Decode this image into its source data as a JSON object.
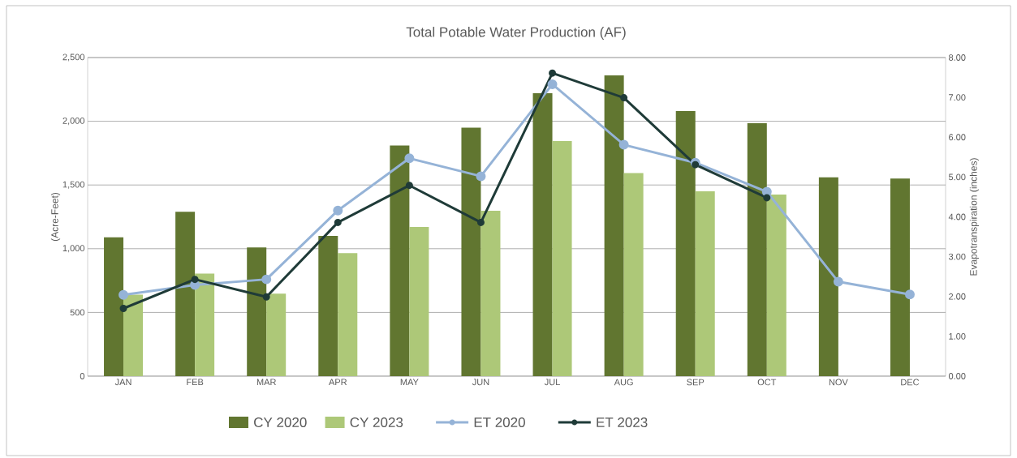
{
  "chart_data": {
    "type": "bar",
    "title": "Total Potable Water Production (AF)",
    "ylabel": "(Acre-Feet)",
    "y2label": "Evapotranspiration (inches)",
    "categories": [
      "JAN",
      "FEB",
      "MAR",
      "APR",
      "MAY",
      "JUN",
      "JUL",
      "AUG",
      "SEP",
      "OCT",
      "NOV",
      "DEC"
    ],
    "ylim": [
      0,
      2500
    ],
    "yticks": [
      {
        "value": 0,
        "label": "0"
      },
      {
        "value": 500,
        "label": "500"
      },
      {
        "value": 1000,
        "label": "1,000"
      },
      {
        "value": 1500,
        "label": "1,500"
      },
      {
        "value": 2000,
        "label": "2,000"
      },
      {
        "value": 2500,
        "label": "2,500"
      }
    ],
    "y2lim": [
      0,
      8
    ],
    "y2ticks": [
      {
        "value": 0,
        "label": "0.00"
      },
      {
        "value": 1,
        "label": "1.00"
      },
      {
        "value": 2,
        "label": "2.00"
      },
      {
        "value": 3,
        "label": "3.00"
      },
      {
        "value": 4,
        "label": "4.00"
      },
      {
        "value": 5,
        "label": "5.00"
      },
      {
        "value": 6,
        "label": "6.00"
      },
      {
        "value": 7,
        "label": "7.00"
      },
      {
        "value": 8,
        "label": "8.00"
      }
    ],
    "grid": "y",
    "legend": "bottom",
    "marker": "circle",
    "series": [
      {
        "name": "CY 2020",
        "color": "#617630",
        "values": [
          1090,
          1290,
          1010,
          1100,
          1810,
          1950,
          2220,
          2360,
          2080,
          1985,
          1560,
          1550
        ]
      },
      {
        "name": "CY 2023",
        "color": "#adc878",
        "values": [
          640,
          805,
          648,
          965,
          1170,
          1297,
          1847,
          1594,
          1450,
          1425,
          null,
          null
        ]
      },
      {
        "name": "ET 2020",
        "type": "line",
        "axis": "y2",
        "color": "#95b3d7",
        "values": [
          2.04,
          2.29,
          2.43,
          4.16,
          5.47,
          5.02,
          7.33,
          5.81,
          5.36,
          4.63,
          2.37,
          2.05
        ]
      },
      {
        "name": "ET 2023",
        "type": "line",
        "axis": "y2",
        "color": "#1f3b38",
        "values": [
          1.7,
          2.43,
          1.99,
          3.86,
          4.79,
          3.86,
          7.61,
          6.99,
          5.31,
          4.48,
          null,
          null
        ]
      }
    ]
  }
}
